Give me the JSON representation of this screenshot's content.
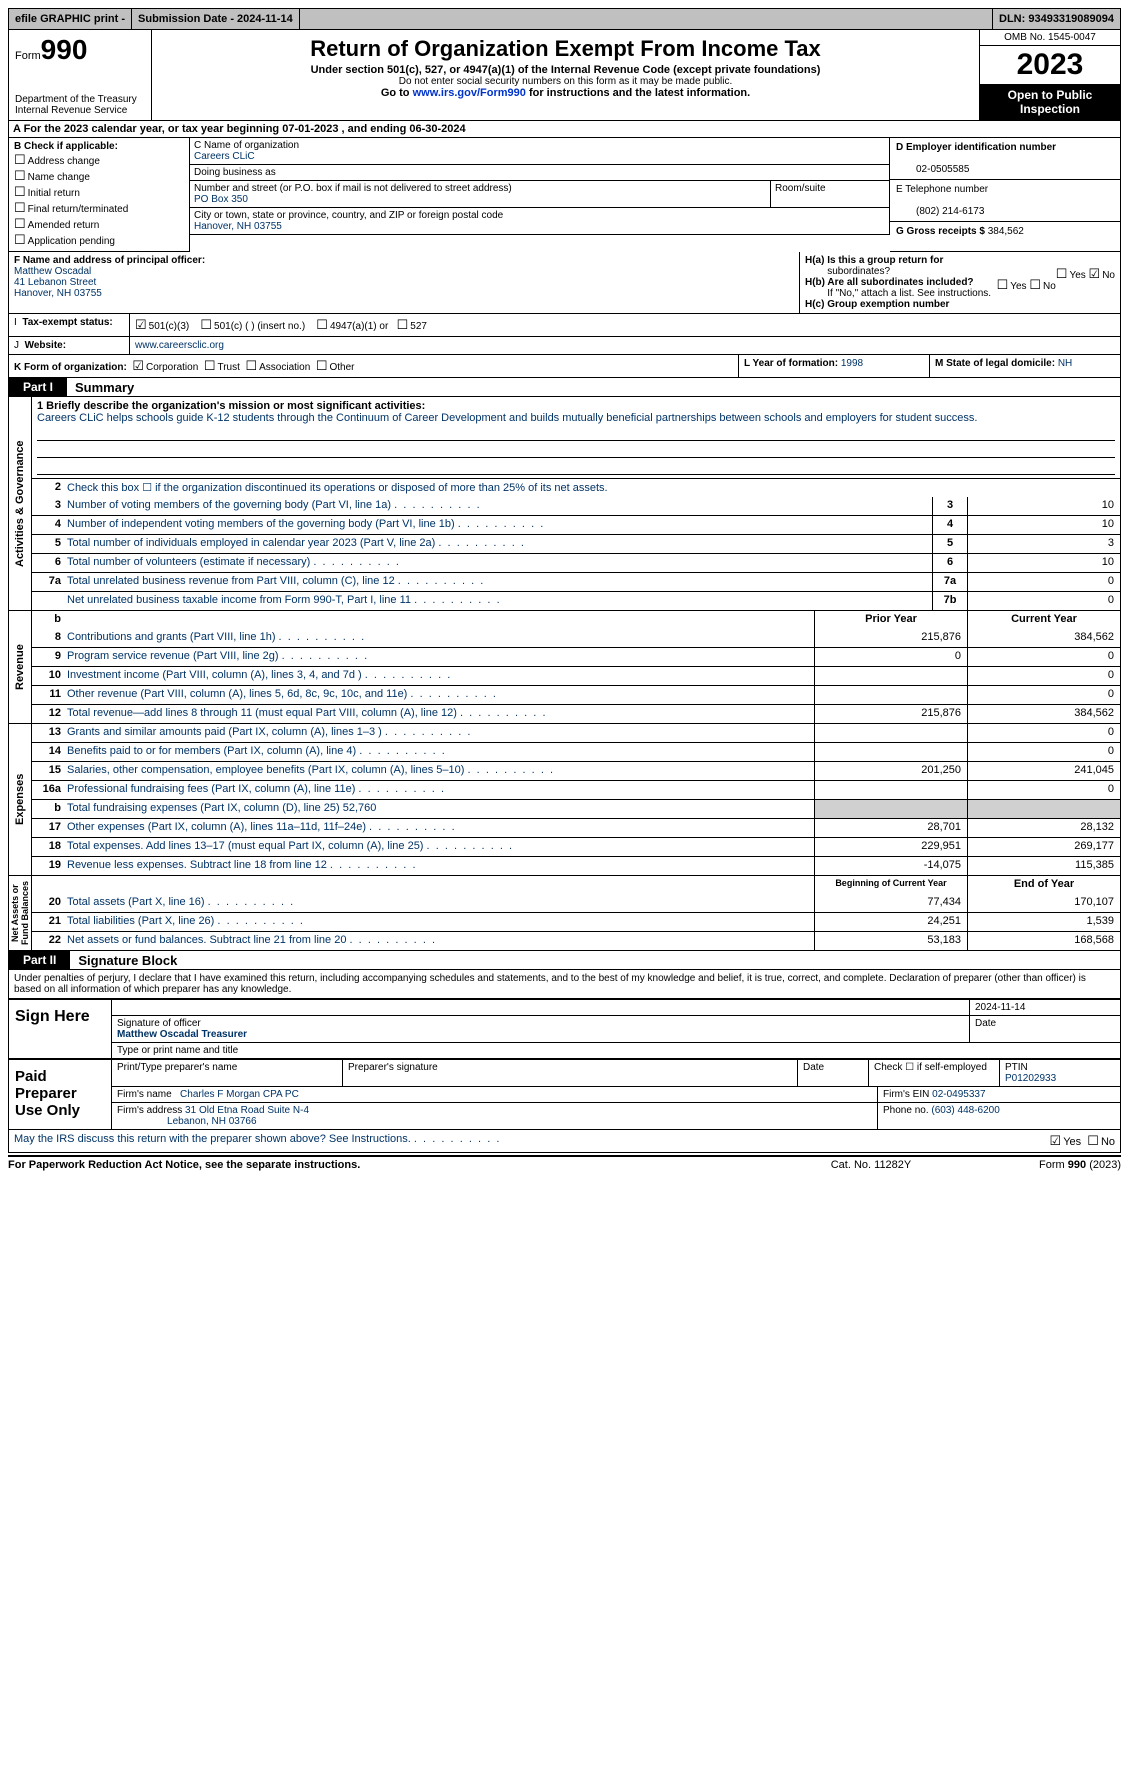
{
  "topbar": {
    "efile": "efile GRAPHIC print -",
    "submission": "Submission Date - 2024-11-14",
    "dln": "DLN: 93493319089094"
  },
  "header": {
    "form_prefix": "Form",
    "form_num": "990",
    "title": "Return of Organization Exempt From Income Tax",
    "subtitle": "Under section 501(c), 527, or 4947(a)(1) of the Internal Revenue Code (except private foundations)",
    "warn": "Do not enter social security numbers on this form as it may be made public.",
    "goto": "Go to www.irs.gov/Form990 for instructions and the latest information.",
    "dept": "Department of the Treasury\nInternal Revenue Service",
    "omb": "OMB No. 1545-0047",
    "year": "2023",
    "inspect": "Open to Public Inspection"
  },
  "period": {
    "label_a": "A For the 2023 calendar year, or tax year beginning ",
    "begin": "07-01-2023",
    "mid": " , and ending ",
    "end": "06-30-2024"
  },
  "B": {
    "hdr": "B Check if applicable:",
    "items": [
      "Address change",
      "Name change",
      "Initial return",
      "Final return/terminated",
      "Amended return",
      "Application pending"
    ]
  },
  "C": {
    "name_lbl": "C Name of organization",
    "name": "Careers CLiC",
    "dba_lbl": "Doing business as",
    "addr_lbl": "Number and street (or P.O. box if mail is not delivered to street address)",
    "room_lbl": "Room/suite",
    "addr": "PO Box 350",
    "city_lbl": "City or town, state or province, country, and ZIP or foreign postal code",
    "city": "Hanover, NH  03755"
  },
  "D": {
    "ein_lbl": "D Employer identification number",
    "ein": "02-0505585",
    "tel_lbl": "E Telephone number",
    "tel": "(802) 214-6173",
    "gross_lbl": "G Gross receipts $",
    "gross": "384,562"
  },
  "F": {
    "lbl": "F  Name and address of principal officer:",
    "name": "Matthew Oscadal",
    "street": "41 Lebanon Street",
    "city": "Hanover, NH  03755"
  },
  "H": {
    "a": "H(a)  Is this a group return for",
    "a2": "subordinates?",
    "b": "H(b)  Are all subordinates included?",
    "b2": "If \"No,\" attach a list. See instructions.",
    "c": "H(c)  Group exemption number ",
    "yes": "Yes",
    "no": "No"
  },
  "I": {
    "lbl": "Tax-exempt status:",
    "c3": "501(c)(3)",
    "c": "501(c) (  ) (insert no.)",
    "a1": "4947(a)(1) or",
    "527": "527"
  },
  "J": {
    "lbl": "Website:",
    "val": "www.careersclic.org"
  },
  "K": {
    "lbl": "K Form of organization:",
    "corp": "Corporation",
    "trust": "Trust",
    "assoc": "Association",
    "other": "Other"
  },
  "L": {
    "lbl": "L Year of formation:",
    "val": "1998"
  },
  "M": {
    "lbl": "M State of legal domicile:",
    "val": "NH"
  },
  "parts": {
    "p1": "Part I",
    "p1t": "Summary",
    "p2": "Part II",
    "p2t": "Signature Block"
  },
  "summary": {
    "mission_lbl": "1  Briefly describe the organization's mission or most significant activities:",
    "mission": "Careers CLiC helps schools guide K-12 students through the Continuum of Career Development and builds mutually beneficial partnerships between schools and employers for student success.",
    "l2": "Check this box  ☐  if the organization discontinued its operations or disposed of more than 25% of its net assets.",
    "lines_ag": [
      {
        "n": "3",
        "d": "Number of voting members of the governing body (Part VI, line 1a)",
        "box": "3",
        "v": "10"
      },
      {
        "n": "4",
        "d": "Number of independent voting members of the governing body (Part VI, line 1b)",
        "box": "4",
        "v": "10"
      },
      {
        "n": "5",
        "d": "Total number of individuals employed in calendar year 2023 (Part V, line 2a)",
        "box": "5",
        "v": "3"
      },
      {
        "n": "6",
        "d": "Total number of volunteers (estimate if necessary)",
        "box": "6",
        "v": "10"
      },
      {
        "n": "7a",
        "d": "Total unrelated business revenue from Part VIII, column (C), line 12",
        "box": "7a",
        "v": "0"
      },
      {
        "n": "",
        "d": "Net unrelated business taxable income from Form 990-T, Part I, line 11",
        "box": "7b",
        "v": "0"
      }
    ],
    "col_prior": "Prior Year",
    "col_curr": "Current Year",
    "revenue": [
      {
        "n": "8",
        "d": "Contributions and grants (Part VIII, line 1h)",
        "p": "215,876",
        "c": "384,562"
      },
      {
        "n": "9",
        "d": "Program service revenue (Part VIII, line 2g)",
        "p": "0",
        "c": "0"
      },
      {
        "n": "10",
        "d": "Investment income (Part VIII, column (A), lines 3, 4, and 7d )",
        "p": "",
        "c": "0"
      },
      {
        "n": "11",
        "d": "Other revenue (Part VIII, column (A), lines 5, 6d, 8c, 9c, 10c, and 11e)",
        "p": "",
        "c": "0"
      },
      {
        "n": "12",
        "d": "Total revenue—add lines 8 through 11 (must equal Part VIII, column (A), line 12)",
        "p": "215,876",
        "c": "384,562"
      }
    ],
    "expenses": [
      {
        "n": "13",
        "d": "Grants and similar amounts paid (Part IX, column (A), lines 1–3 )",
        "p": "",
        "c": "0"
      },
      {
        "n": "14",
        "d": "Benefits paid to or for members (Part IX, column (A), line 4)",
        "p": "",
        "c": "0"
      },
      {
        "n": "15",
        "d": "Salaries, other compensation, employee benefits (Part IX, column (A), lines 5–10)",
        "p": "201,250",
        "c": "241,045"
      },
      {
        "n": "16a",
        "d": "Professional fundraising fees (Part IX, column (A), line 11e)",
        "p": "",
        "c": "0"
      },
      {
        "n": "b",
        "d": "Total fundraising expenses (Part IX, column (D), line 25) 52,760",
        "p": "grey",
        "c": "grey"
      },
      {
        "n": "17",
        "d": "Other expenses (Part IX, column (A), lines 11a–11d, 11f–24e)",
        "p": "28,701",
        "c": "28,132"
      },
      {
        "n": "18",
        "d": "Total expenses. Add lines 13–17 (must equal Part IX, column (A), line 25)",
        "p": "229,951",
        "c": "269,177"
      },
      {
        "n": "19",
        "d": "Revenue less expenses. Subtract line 18 from line 12",
        "p": "-14,075",
        "c": "115,385"
      }
    ],
    "col_begin": "Beginning of Current Year",
    "col_end": "End of Year",
    "netassets": [
      {
        "n": "20",
        "d": "Total assets (Part X, line 16)",
        "p": "77,434",
        "c": "170,107"
      },
      {
        "n": "21",
        "d": "Total liabilities (Part X, line 26)",
        "p": "24,251",
        "c": "1,539"
      },
      {
        "n": "22",
        "d": "Net assets or fund balances. Subtract line 21 from line 20",
        "p": "53,183",
        "c": "168,568"
      }
    ],
    "vlabels": {
      "ag": "Activities & Governance",
      "rev": "Revenue",
      "exp": "Expenses",
      "na": "Net Assets or\nFund Balances"
    }
  },
  "sig": {
    "decl": "Under penalties of perjury, I declare that I have examined this return, including accompanying schedules and statements, and to the best of my knowledge and belief, it is true, correct, and complete. Declaration of preparer (other than officer) is based on all information of which preparer has any knowledge.",
    "sign_here": "Sign Here",
    "sig_lbl": "Signature of officer",
    "date_lbl": "Date",
    "date": "2024-11-14",
    "name": "Matthew Oscadal  Treasurer",
    "type_lbl": "Type or print name and title",
    "paid": "Paid Preparer Use Only",
    "prep_name_lbl": "Print/Type preparer's name",
    "prep_sig_lbl": "Preparer's signature",
    "chk_self": "Check ☐ if self-employed",
    "ptin_lbl": "PTIN",
    "ptin": "P01202933",
    "firm_name_lbl": "Firm's name",
    "firm_name": "Charles F Morgan CPA PC",
    "firm_ein_lbl": "Firm's EIN",
    "firm_ein": "02-0495337",
    "firm_addr_lbl": "Firm's address",
    "firm_addr": "31 Old Etna Road Suite N-4",
    "firm_city": "Lebanon, NH  03766",
    "phone_lbl": "Phone no.",
    "phone": "(603) 448-6200",
    "discuss": "May the IRS discuss this return with the preparer shown above? See Instructions."
  },
  "footer": {
    "left": "For Paperwork Reduction Act Notice, see the separate instructions.",
    "mid": "Cat. No. 11282Y",
    "right": "Form 990 (2023)"
  }
}
